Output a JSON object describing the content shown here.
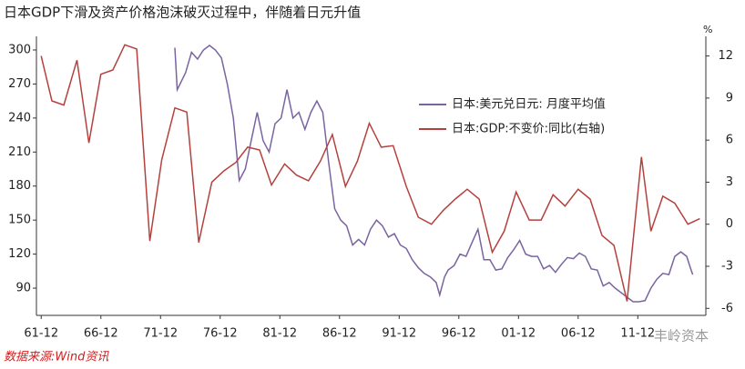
{
  "chart_data": {
    "type": "line",
    "title": "日本GDP下滑及资产价格泡沫破灭过程中，伴随着日元升值",
    "y2_unit": "%",
    "source": "数据来源:Wind资讯",
    "watermark": "丰岭资本",
    "xlim": [
      1961.5,
      2017.6
    ],
    "xticks": [
      {
        "value": 1961.9,
        "label": "61-12"
      },
      {
        "value": 1966.9,
        "label": "66-12"
      },
      {
        "value": 1971.9,
        "label": "71-12"
      },
      {
        "value": 1976.9,
        "label": "76-12"
      },
      {
        "value": 1981.9,
        "label": "81-12"
      },
      {
        "value": 1986.9,
        "label": "86-12"
      },
      {
        "value": 1991.9,
        "label": "91-12"
      },
      {
        "value": 1996.9,
        "label": "96-12"
      },
      {
        "value": 2001.9,
        "label": "01-12"
      },
      {
        "value": 2006.9,
        "label": "06-12"
      },
      {
        "value": 2011.9,
        "label": "11-12"
      }
    ],
    "ylim": [
      66,
      312
    ],
    "yticks": [
      90,
      120,
      150,
      180,
      210,
      240,
      270,
      300
    ],
    "y2lim": [
      -6.5,
      13.4
    ],
    "y2ticks": [
      -6,
      -3,
      0,
      3,
      6,
      9,
      12
    ],
    "legend": "upper right",
    "series": [
      {
        "name": "日本:美元兑日元: 月度平均值",
        "color": "#7a64a0",
        "x": [
          1973.1,
          1973.3,
          1974.0,
          1974.5,
          1975.0,
          1975.5,
          1976.0,
          1976.5,
          1977.0,
          1977.5,
          1978.0,
          1978.5,
          1979.0,
          1979.5,
          1980.0,
          1980.5,
          1981.0,
          1981.5,
          1982.0,
          1982.5,
          1983.0,
          1983.5,
          1984.0,
          1984.5,
          1985.0,
          1985.5,
          1986.0,
          1986.5,
          1987.0,
          1987.5,
          1988.0,
          1988.5,
          1989.0,
          1989.5,
          1990.0,
          1990.5,
          1991.0,
          1991.5,
          1992.0,
          1992.5,
          1993.0,
          1993.5,
          1994.0,
          1994.5,
          1995.0,
          1995.3,
          1995.7,
          1996.0,
          1996.5,
          1997.0,
          1997.5,
          1998.0,
          1998.5,
          1999.0,
          1999.5,
          2000.0,
          2000.5,
          2001.0,
          2001.5,
          2002.0,
          2002.5,
          2003.0,
          2003.5,
          2004.0,
          2004.5,
          2005.0,
          2005.5,
          2006.0,
          2006.5,
          2007.0,
          2007.5,
          2008.0,
          2008.5,
          2009.0,
          2009.5,
          2010.0,
          2010.5,
          2011.0,
          2011.5,
          2012.0,
          2012.5,
          2013.0,
          2013.5,
          2014.0,
          2014.5,
          2015.0,
          2015.5,
          2016.0,
          2016.3,
          2016.5
        ],
        "values": [
          302,
          265,
          280,
          298,
          292,
          300,
          304,
          300,
          293,
          270,
          240,
          185,
          195,
          220,
          245,
          220,
          210,
          235,
          240,
          265,
          240,
          245,
          230,
          245,
          255,
          245,
          200,
          160,
          150,
          145,
          128,
          133,
          128,
          142,
          150,
          145,
          135,
          138,
          128,
          125,
          115,
          108,
          103,
          100,
          95,
          84,
          100,
          106,
          110,
          120,
          118,
          130,
          142,
          115,
          115,
          106,
          107,
          117,
          124,
          132,
          120,
          118,
          118,
          107,
          110,
          104,
          111,
          117,
          116,
          121,
          118,
          107,
          106,
          92,
          95,
          90,
          86,
          82,
          78,
          78,
          79,
          90,
          98,
          103,
          102,
          118,
          122,
          118,
          108,
          102
        ]
      },
      {
        "name": "日本:GDP:不变价:同比(右轴)",
        "color": "#b5413e",
        "axis": "y2",
        "x": [
          1961.9,
          1962.8,
          1963.8,
          1964.9,
          1965.9,
          1966.9,
          1967.9,
          1968.9,
          1969.9,
          1971.0,
          1972.0,
          1973.1,
          1974.1,
          1975.1,
          1976.2,
          1977.2,
          1978.2,
          1979.2,
          1980.2,
          1981.2,
          1982.3,
          1983.3,
          1984.3,
          1985.3,
          1986.3,
          1987.4,
          1988.4,
          1989.4,
          1990.4,
          1991.4,
          1992.5,
          1993.5,
          1994.6,
          1995.6,
          1996.6,
          1997.6,
          1998.6,
          1999.7,
          2000.7,
          2001.7,
          2002.8,
          2003.8,
          2004.8,
          2005.8,
          2006.9,
          2007.9,
          2008.9,
          2009.9,
          2011.0,
          2012.2,
          2013.0,
          2014.0,
          2015.0,
          2016.1,
          2017.1
        ],
        "values": [
          12,
          8.8,
          8.5,
          11.7,
          5.8,
          10.7,
          11,
          12.8,
          12.5,
          -1.2,
          4.6,
          8.3,
          8,
          -1.3,
          3,
          3.8,
          4.4,
          5.5,
          5.3,
          2.8,
          4.3,
          3.5,
          3.1,
          4.5,
          6.4,
          2.7,
          4.5,
          7.2,
          5.5,
          5.6,
          2.7,
          0.5,
          0,
          1,
          1.8,
          2.5,
          1.8,
          -2,
          -0.5,
          2.3,
          0.3,
          0.3,
          2.1,
          1.3,
          2.5,
          1.8,
          -0.8,
          -1.5,
          -5.5,
          4.8,
          -0.5,
          2,
          1.5,
          0,
          0.4
        ]
      }
    ]
  }
}
